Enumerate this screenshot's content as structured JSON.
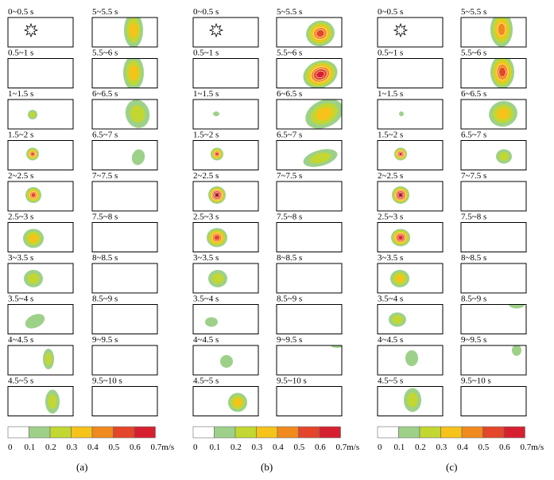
{
  "chart_data": {
    "type": "heatmap",
    "description_colors": [
      "#ffffff",
      "#9dd18a",
      "#c2d731",
      "#f6c31b",
      "#f08a1f",
      "#e4462b",
      "#d62030",
      "#8e1c1c"
    ],
    "colorbar": {
      "ticks": [
        "0",
        "0.1",
        "0.2",
        "0.3",
        "0.4",
        "0.5",
        "0.6",
        "0.7m/s"
      ]
    },
    "panels": [
      {
        "label": "(a)",
        "left_column": {
          "intervals": [
            "0~0.5 s",
            "0.5~1 s",
            "1~1.5 s",
            "1.5~2 s",
            "2~2.5 s",
            "2.5~3 s",
            "3~3.5 s",
            "3.5~4 s",
            "4~4.5 s",
            "4.5~5 s"
          ],
          "peak_level": [
            0,
            0,
            2,
            5,
            5,
            3,
            2,
            1,
            2,
            2
          ]
        },
        "right_column": {
          "intervals": [
            "5~5.5 s",
            "5.5~6 s",
            "6~6.5 s",
            "6.5~7 s",
            "7~7.5 s",
            "7.5~8 s",
            "8~8.5 s",
            "8.5~9 s",
            "9~9.5 s",
            "9.5~10 s"
          ],
          "peak_level": [
            3,
            3,
            2,
            1,
            0,
            0,
            0,
            0,
            0,
            0
          ]
        }
      },
      {
        "label": "(b)",
        "left_column": {
          "intervals": [
            "0~0.5 s",
            "0.5~1 s",
            "1~1.5 s",
            "1.5~2 s",
            "2~2.5 s",
            "2.5~3 s",
            "3~3.5 s",
            "3.5~4 s",
            "4~4.5 s",
            "4.5~5 s"
          ],
          "peak_level": [
            0,
            0,
            1,
            5,
            7,
            5,
            2,
            1,
            1,
            3
          ]
        },
        "right_column": {
          "intervals": [
            "5~5.5 s",
            "5.5~6 s",
            "6~6.5 s",
            "6.5~7 s",
            "7~7.5 s",
            "7.5~8 s",
            "8~8.5 s",
            "8.5~9 s",
            "9~9.5 s",
            "9.5~10 s"
          ],
          "peak_level": [
            5,
            6,
            3,
            2,
            0,
            0,
            0,
            0,
            1,
            0
          ]
        }
      },
      {
        "label": "(c)",
        "left_column": {
          "intervals": [
            "0~0.5 s",
            "0.5~1 s",
            "1~1.5 s",
            "1.5~2 s",
            "2~2.5 s",
            "2.5~3 s",
            "3~3.5 s",
            "3.5~4 s",
            "4~4.5 s",
            "4.5~5 s"
          ],
          "peak_level": [
            0,
            0,
            1,
            6,
            7,
            6,
            3,
            2,
            1,
            2
          ]
        },
        "right_column": {
          "intervals": [
            "5~5.5 s",
            "5.5~6 s",
            "6~6.5 s",
            "6.5~7 s",
            "7~7.5 s",
            "7.5~8 s",
            "8~8.5 s",
            "8.5~9 s",
            "9~9.5 s",
            "9.5~10 s"
          ],
          "peak_level": [
            4,
            5,
            3,
            2,
            0,
            0,
            0,
            1,
            1,
            0
          ]
        }
      }
    ]
  }
}
